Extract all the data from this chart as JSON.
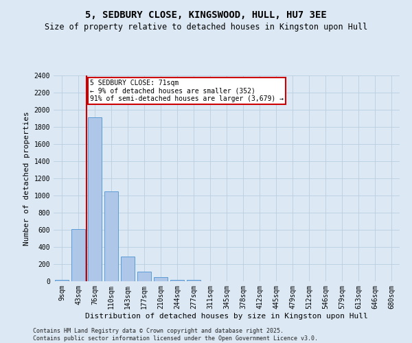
{
  "title": "5, SEDBURY CLOSE, KINGSWOOD, HULL, HU7 3EE",
  "subtitle": "Size of property relative to detached houses in Kingston upon Hull",
  "xlabel": "Distribution of detached houses by size in Kingston upon Hull",
  "ylabel": "Number of detached properties",
  "categories": [
    "9sqm",
    "43sqm",
    "76sqm",
    "110sqm",
    "143sqm",
    "177sqm",
    "210sqm",
    "244sqm",
    "277sqm",
    "311sqm",
    "345sqm",
    "378sqm",
    "412sqm",
    "445sqm",
    "479sqm",
    "512sqm",
    "546sqm",
    "579sqm",
    "613sqm",
    "646sqm",
    "680sqm"
  ],
  "values": [
    15,
    605,
    1910,
    1045,
    290,
    115,
    45,
    20,
    15,
    0,
    0,
    0,
    0,
    0,
    0,
    0,
    0,
    0,
    0,
    0,
    0
  ],
  "bar_color": "#aec6e8",
  "bar_edge_color": "#5b9bd5",
  "vline_color": "#cc0000",
  "vline_x": 1.5,
  "annotation_text": "5 SEDBURY CLOSE: 71sqm\n← 9% of detached houses are smaller (352)\n91% of semi-detached houses are larger (3,679) →",
  "annotation_box_color": "#ffffff",
  "annotation_box_edge": "#cc0000",
  "ylim": [
    0,
    2400
  ],
  "yticks": [
    0,
    200,
    400,
    600,
    800,
    1000,
    1200,
    1400,
    1600,
    1800,
    2000,
    2200,
    2400
  ],
  "grid_color": "#b8cfe0",
  "background_color": "#dce9f5",
  "plot_background": "#dce9f5",
  "footer": "Contains HM Land Registry data © Crown copyright and database right 2025.\nContains public sector information licensed under the Open Government Licence v3.0.",
  "title_fontsize": 10,
  "subtitle_fontsize": 8.5,
  "xlabel_fontsize": 8,
  "ylabel_fontsize": 8,
  "tick_fontsize": 7,
  "footer_fontsize": 6
}
